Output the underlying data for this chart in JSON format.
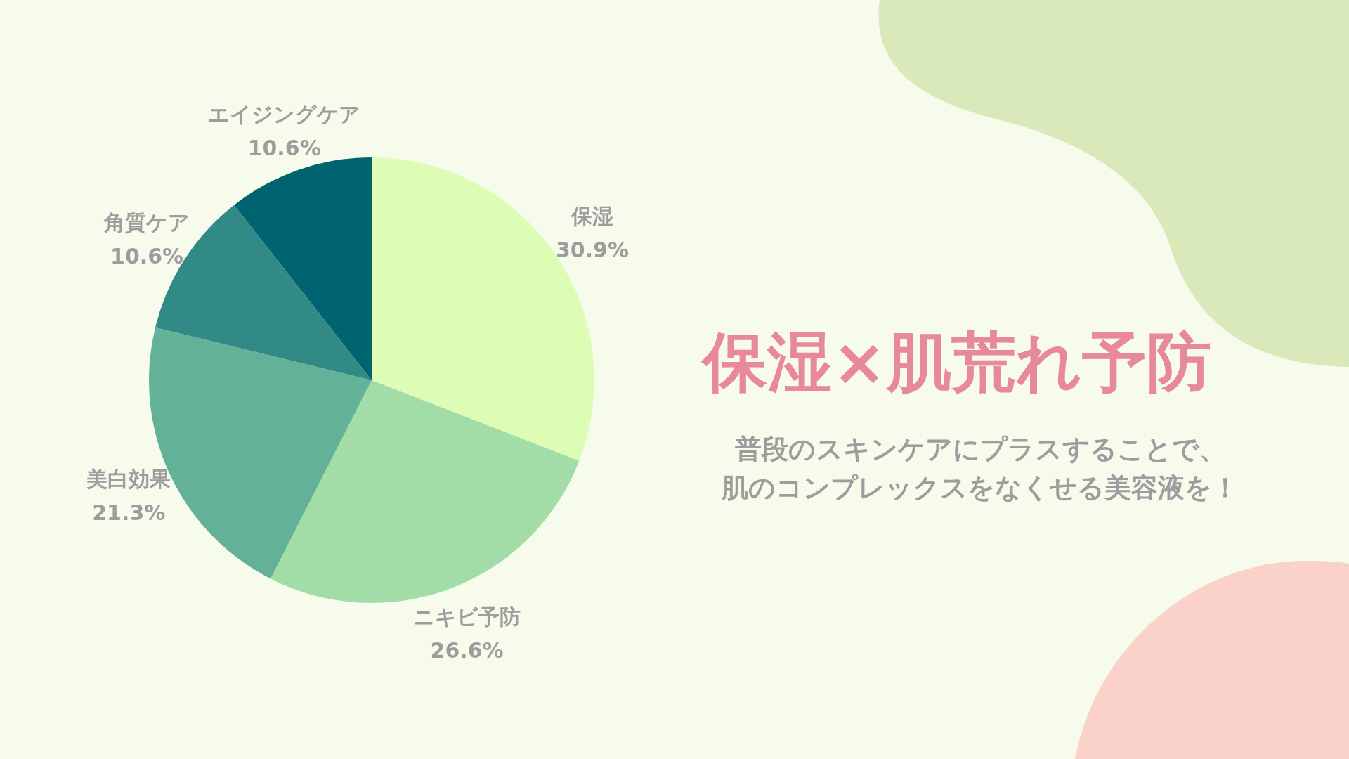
{
  "chart_data": {
    "type": "pie",
    "title": "保湿×肌荒れ予防",
    "subtitle": "普段のスキンケアにプラスすることで、",
    "annotations": [
      "肌のコンプレックスをなくせる美容液を！"
    ],
    "categories": [
      "保湿",
      "ニキビ予防",
      "美白効果",
      "角質ケア",
      "エイジングケア"
    ],
    "values": [
      30.9,
      26.6,
      21.3,
      10.6,
      10.6
    ],
    "colors": [
      "#ddfdb6",
      "#a2dca6",
      "#63b298",
      "#318a86",
      "#006470"
    ],
    "value_labels": [
      "30.9%",
      "26.6%",
      "21.3%",
      "10.6%",
      "10.6%"
    ]
  }
}
